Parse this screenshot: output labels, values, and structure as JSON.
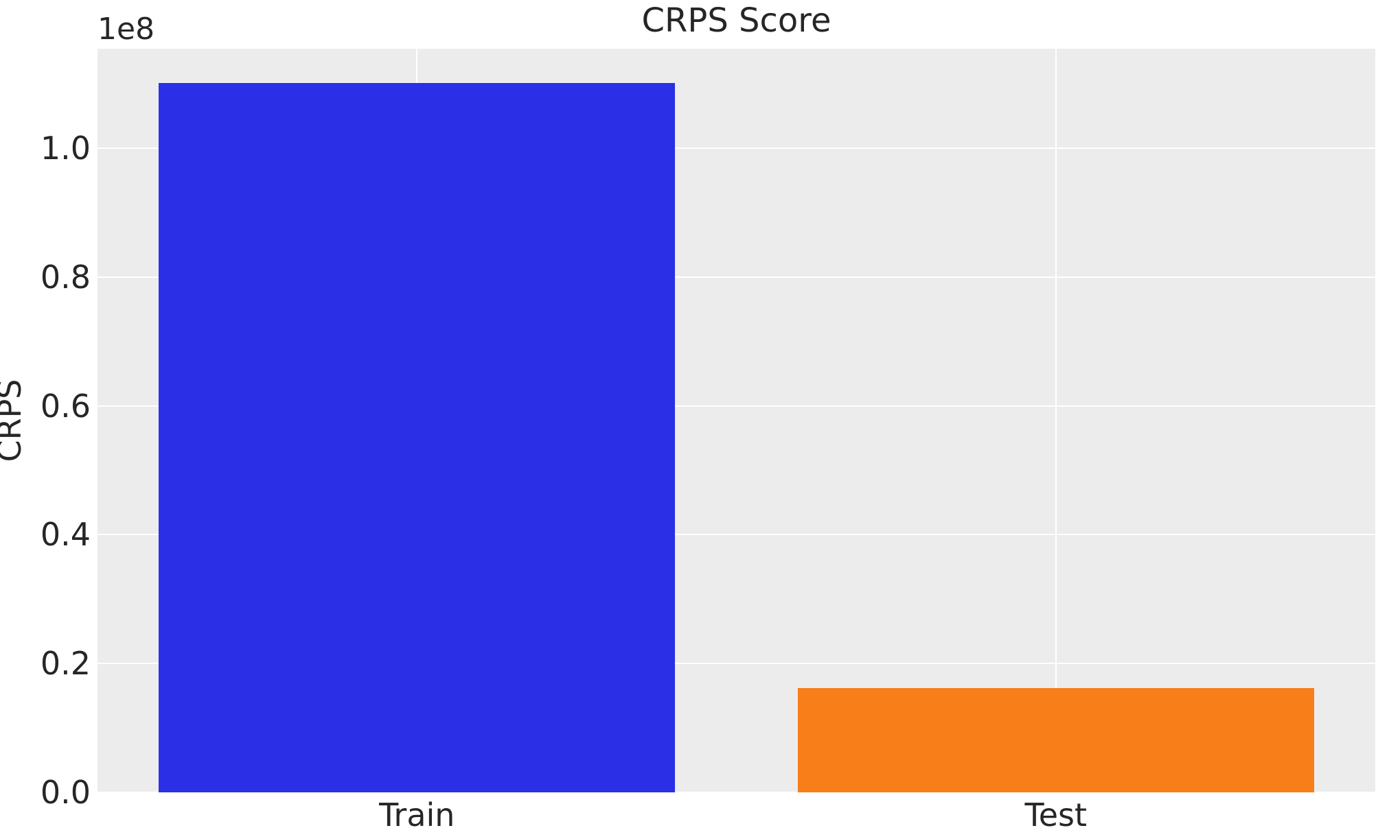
{
  "figure": {
    "title": "CRPS Score",
    "y_axis_label": "CRPS",
    "offset_text": "1e8"
  },
  "colors": {
    "plot_background": "#ececec",
    "gridline": "#ffffff",
    "text": "#262626",
    "train_bar": "#2b2fe6",
    "test_bar": "#f87e19",
    "figure_background": "#ffffff"
  },
  "chart_data": {
    "type": "bar",
    "title": "CRPS Score",
    "xlabel": "",
    "ylabel": "CRPS",
    "categories": [
      "Train",
      "Test"
    ],
    "values": [
      110100000,
      16200000
    ],
    "bar_colors": [
      "#2b2fe6",
      "#f87e19"
    ],
    "ylim": [
      0,
      115460000
    ],
    "yticks": [
      0,
      20000000,
      40000000,
      60000000,
      80000000,
      100000000
    ],
    "ytick_labels": [
      "0.0",
      "0.2",
      "0.4",
      "0.6",
      "0.8",
      "1.0"
    ],
    "y_offset_text": "1e8",
    "bar_width_fraction": 0.404,
    "grid": true,
    "legend": false
  }
}
